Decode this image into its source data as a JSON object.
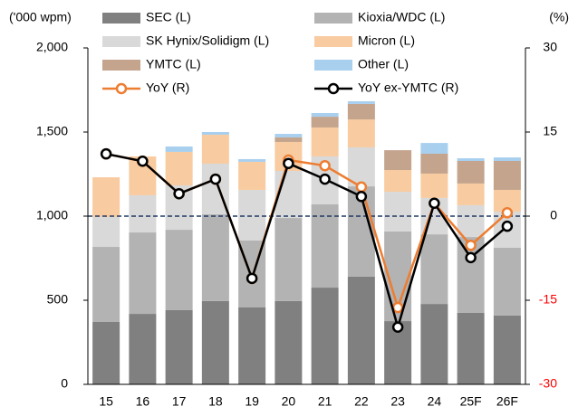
{
  "chart_data": {
    "type": "stacked_bar_line",
    "y_label": "('000 wpm)",
    "y2_label": "(%)",
    "categories": [
      "15",
      "16",
      "17",
      "18",
      "19",
      "20",
      "21",
      "22",
      "23",
      "24",
      "25F",
      "26F"
    ],
    "series": [
      {
        "name": "SEC (L)",
        "color": "#808080",
        "values": [
          371,
          419,
          441,
          495,
          457,
          495,
          575,
          640,
          376,
          478,
          425,
          409
        ]
      },
      {
        "name": "Kioxia/WDC (L)",
        "color": "#b3b3b3",
        "values": [
          446,
          484,
          478,
          516,
          398,
          494,
          495,
          537,
          533,
          414,
          451,
          403
        ]
      },
      {
        "name": "SK Hynix/Solidigm (L)",
        "color": "#d9d9d9",
        "values": [
          178,
          221,
          264,
          301,
          301,
          280,
          285,
          232,
          236,
          216,
          189,
          215
        ]
      },
      {
        "name": "Micron (L)",
        "color": "#f8cba0",
        "values": [
          236,
          231,
          199,
          172,
          167,
          172,
          172,
          166,
          129,
          145,
          129,
          129
        ]
      },
      {
        "name": "YMTC (L)",
        "color": "#c4a48c",
        "values": [
          0,
          0,
          0,
          0,
          0,
          27,
          64,
          92,
          118,
          118,
          134,
          172
        ]
      },
      {
        "name": "Other (L)",
        "color": "#a8cfee",
        "values": [
          0,
          0,
          32,
          16,
          16,
          21,
          22,
          16,
          0,
          64,
          16,
          21
        ]
      },
      {
        "name": "YoY (R)",
        "color": "#ed7d31",
        "axis": "y2",
        "values": [
          11.1,
          9.8,
          4.0,
          6.6,
          -11.1,
          10.0,
          9.0,
          5.2,
          -16.3,
          2.3,
          -5.2,
          0.6
        ]
      },
      {
        "name": "YoY ex-YMTC (R)",
        "color": "#000000",
        "axis": "y2",
        "values": [
          11.1,
          9.8,
          4.0,
          6.6,
          -11.1,
          9.4,
          6.6,
          3.5,
          -19.8,
          2.3,
          -7.4,
          -1.8
        ]
      }
    ],
    "ylim": [
      0,
      2000
    ],
    "yticks": [
      0,
      500,
      {
        "value": 1000,
        "label": "1,000"
      },
      {
        "value": 1500,
        "label": "1,500"
      },
      {
        "value": 2000,
        "label": "2,000"
      }
    ],
    "y2lim": [
      -30,
      30
    ],
    "y2ticks": [
      -30,
      -15,
      0,
      15,
      30
    ],
    "negative_tick_color": "#ff0000",
    "zero_line": {
      "axis": "y2",
      "value": 0,
      "color": "#1f3864"
    },
    "grid": false
  }
}
